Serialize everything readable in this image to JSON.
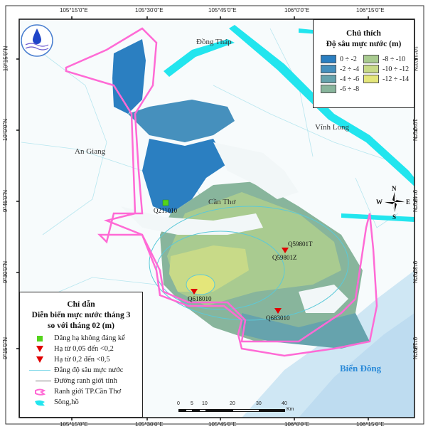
{
  "axes": {
    "lon_ticks": [
      "105°15'0\"E",
      "105°30'0\"E",
      "105°45'0\"E",
      "106°0'0\"E",
      "106°15'0\"E"
    ],
    "lat_ticks": [
      "10°15'0\"N",
      "10°0'0\"N",
      "9°45'0\"N",
      "9°30'0\"N",
      "9°15'0\"N"
    ]
  },
  "places": {
    "dong_thap": "Đồng Tháp",
    "vinh_long": "Vĩnh Long",
    "an_giang": "An Giang",
    "can_tho": "Cần Thơ",
    "bien_dong": "Biển Đông"
  },
  "stations": [
    {
      "id": "Q211010",
      "status": "Dâng hạ không đáng kể"
    },
    {
      "id": "Q59801T",
      "status": "Hạ từ 0,2 đến <0,5"
    },
    {
      "id": "Q59801Z",
      "status": "Hạ từ 0,2 đến <0,5"
    },
    {
      "id": "Q618010",
      "status": "Hạ từ 0,2 đến <0,5"
    },
    {
      "id": "Q683010",
      "status": "Hạ từ 0,05 đến <0,2"
    }
  ],
  "depth_legend": {
    "title1": "Chú thích",
    "title2": "Độ sâu mực nước (m)",
    "classes": [
      {
        "label": "0 ÷ -2",
        "color": "#2b7fc1"
      },
      {
        "label": "-2 ÷ -4",
        "color": "#4690bd"
      },
      {
        "label": "-4 ÷ -6",
        "color": "#66a3ad"
      },
      {
        "label": "-6 ÷ -8",
        "color": "#88b59c"
      },
      {
        "label": "-8 ÷ -10",
        "color": "#a9cb90"
      },
      {
        "label": "-10 ÷ -12",
        "color": "#c8da88"
      },
      {
        "label": "-12 ÷ -14",
        "color": "#e4e67a"
      }
    ]
  },
  "guide_legend": {
    "title1": "Chỉ dẫn",
    "title2": "Diễn biến mực nước tháng 3",
    "title3": "so với tháng 02 (m)",
    "items": [
      {
        "label": "Dâng hạ không đáng kể",
        "symbol": "green-square",
        "color": "#55d41c"
      },
      {
        "label": "Hạ từ 0,05 đến <0,2",
        "symbol": "red-triangle",
        "color": "#e00000"
      },
      {
        "label": "Hạ từ 0,2 đến <0,5",
        "symbol": "red-triangle",
        "color": "#e00000"
      },
      {
        "label": "Đẳng độ sâu mực nước",
        "symbol": "cyan-line",
        "color": "#7fd8e8"
      },
      {
        "label": "Đường ranh giới tỉnh",
        "symbol": "gray-line",
        "color": "#777777"
      },
      {
        "label": "Ranh giới TP.Cần Thơ",
        "symbol": "pink-outline",
        "color": "#ff6ad5"
      },
      {
        "label": "Sông,hồ",
        "symbol": "cyan-fill",
        "color": "#22e5ee"
      }
    ]
  },
  "compass": {
    "n": "N",
    "s": "S",
    "e": "E",
    "w": "W"
  },
  "scale_bar": {
    "ticks": [
      "0",
      "5",
      "10",
      "20",
      "30",
      "40"
    ],
    "unit": "Km"
  }
}
